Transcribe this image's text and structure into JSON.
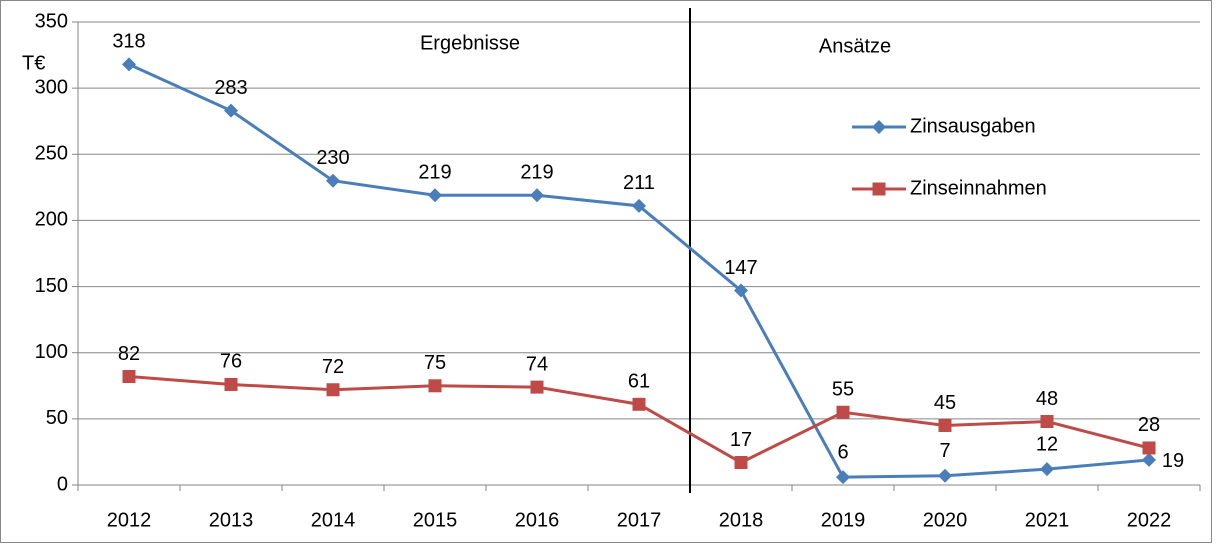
{
  "chart_data": {
    "type": "line",
    "categories": [
      "2012",
      "2013",
      "2014",
      "2015",
      "2016",
      "2017",
      "2018",
      "2019",
      "2020",
      "2021",
      "2022"
    ],
    "series": [
      {
        "name": "Zinsausgaben",
        "color": "#4a7ebb",
        "marker": "diamond",
        "values": [
          318,
          283,
          230,
          219,
          219,
          211,
          147,
          6,
          7,
          12,
          19
        ]
      },
      {
        "name": "Zinseinnahmen",
        "color": "#be4b48",
        "marker": "square",
        "values": [
          82,
          76,
          72,
          75,
          74,
          61,
          17,
          55,
          45,
          48,
          28
        ]
      }
    ],
    "ylim": [
      0,
      350
    ],
    "yticks": [
      0,
      50,
      100,
      150,
      200,
      250,
      300,
      350
    ],
    "grid": true,
    "y_unit": "T€",
    "annotations": [
      "Ergebnisse",
      "Ansätze"
    ],
    "legend": "right"
  }
}
